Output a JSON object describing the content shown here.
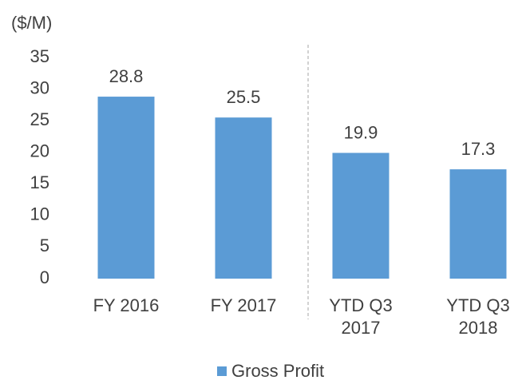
{
  "chart_data": {
    "type": "bar",
    "title": "($/M)",
    "categories": [
      "FY 2016",
      "FY 2017",
      "YTD Q3 2017",
      "YTD Q3 2018"
    ],
    "series": [
      {
        "name": "Gross Profit",
        "color": "#5b9bd5",
        "values": [
          28.8,
          25.5,
          19.9,
          17.3
        ]
      }
    ],
    "ylim": [
      0,
      35
    ],
    "yticks": [
      0,
      5,
      10,
      15,
      20,
      25,
      30,
      35
    ],
    "grid": false,
    "legend": "bottom"
  }
}
